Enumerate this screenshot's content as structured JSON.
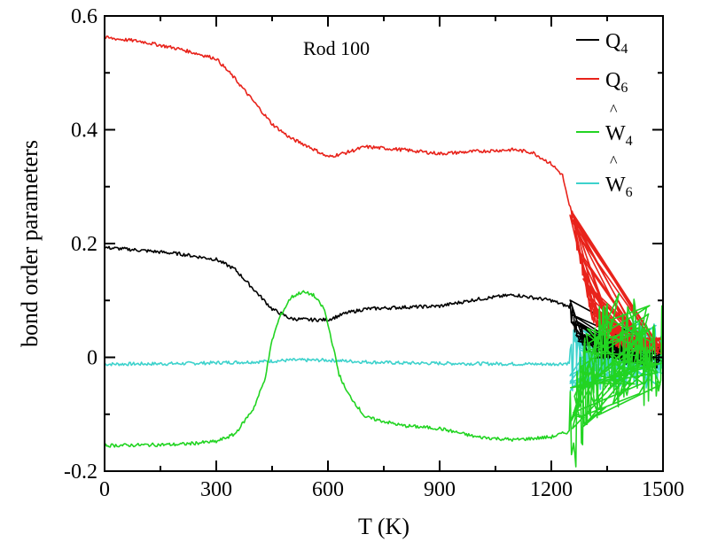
{
  "chart_data": {
    "type": "line",
    "annotation": "Rod 100",
    "xlabel": "T (K)",
    "ylabel": "bond order parameters",
    "xlim": [
      0,
      1500
    ],
    "ylim": [
      -0.2,
      0.6
    ],
    "xticks": [
      0,
      300,
      600,
      900,
      1200,
      1500
    ],
    "xtick_labels": [
      "0",
      "300",
      "600",
      "900",
      "1200",
      "1500"
    ],
    "yticks": [
      -0.2,
      0,
      0.2,
      0.4,
      0.6
    ],
    "ytick_labels": [
      "-0.2",
      "0",
      "0.2",
      "0.4",
      "0.6"
    ],
    "grid": false,
    "legend_position": "top-right",
    "series": [
      {
        "name": "Q4",
        "legend_main": "Q",
        "legend_sub": "4",
        "legend_hat": "",
        "color": "#000000",
        "jitter_start": 1250,
        "jitter_amp": 0.02,
        "points": [
          [
            0,
            0.193
          ],
          [
            100,
            0.188
          ],
          [
            200,
            0.182
          ],
          [
            300,
            0.172
          ],
          [
            350,
            0.155
          ],
          [
            400,
            0.12
          ],
          [
            450,
            0.085
          ],
          [
            500,
            0.068
          ],
          [
            550,
            0.066
          ],
          [
            600,
            0.066
          ],
          [
            650,
            0.078
          ],
          [
            700,
            0.085
          ],
          [
            800,
            0.088
          ],
          [
            900,
            0.09
          ],
          [
            1000,
            0.102
          ],
          [
            1100,
            0.11
          ],
          [
            1200,
            0.1
          ],
          [
            1250,
            0.088
          ],
          [
            1270,
            0.05
          ],
          [
            1300,
            0.02
          ],
          [
            1400,
            0.008
          ],
          [
            1450,
            0.005
          ],
          [
            1500,
            0.0
          ]
        ]
      },
      {
        "name": "Q6",
        "legend_main": "Q",
        "legend_sub": "6",
        "legend_hat": "",
        "color": "#e8231b",
        "jitter_start": 1250,
        "jitter_amp": 0.015,
        "points": [
          [
            0,
            0.562
          ],
          [
            100,
            0.555
          ],
          [
            200,
            0.542
          ],
          [
            300,
            0.525
          ],
          [
            350,
            0.49
          ],
          [
            400,
            0.45
          ],
          [
            450,
            0.41
          ],
          [
            500,
            0.385
          ],
          [
            550,
            0.37
          ],
          [
            600,
            0.352
          ],
          [
            650,
            0.36
          ],
          [
            700,
            0.37
          ],
          [
            800,
            0.365
          ],
          [
            900,
            0.358
          ],
          [
            1000,
            0.362
          ],
          [
            1100,
            0.365
          ],
          [
            1150,
            0.36
          ],
          [
            1200,
            0.34
          ],
          [
            1230,
            0.32
          ],
          [
            1250,
            0.26
          ],
          [
            1270,
            0.2
          ],
          [
            1290,
            0.14
          ],
          [
            1310,
            0.08
          ],
          [
            1350,
            0.04
          ],
          [
            1400,
            0.025
          ],
          [
            1450,
            0.02
          ],
          [
            1500,
            0.02
          ]
        ]
      },
      {
        "name": "Ŵ4",
        "legend_main": "W",
        "legend_sub": "4",
        "legend_hat": "^",
        "color": "#22d422",
        "jitter_start": 1250,
        "jitter_amp": 0.1,
        "points": [
          [
            0,
            -0.155
          ],
          [
            100,
            -0.154
          ],
          [
            200,
            -0.153
          ],
          [
            300,
            -0.148
          ],
          [
            350,
            -0.135
          ],
          [
            400,
            -0.09
          ],
          [
            430,
            -0.04
          ],
          [
            450,
            0.03
          ],
          [
            470,
            0.07
          ],
          [
            500,
            0.105
          ],
          [
            530,
            0.115
          ],
          [
            560,
            0.11
          ],
          [
            590,
            0.085
          ],
          [
            610,
            0.03
          ],
          [
            630,
            -0.03
          ],
          [
            650,
            -0.06
          ],
          [
            700,
            -0.105
          ],
          [
            800,
            -0.12
          ],
          [
            900,
            -0.125
          ],
          [
            1000,
            -0.14
          ],
          [
            1100,
            -0.145
          ],
          [
            1200,
            -0.14
          ],
          [
            1250,
            -0.13
          ],
          [
            1300,
            -0.02
          ],
          [
            1350,
            0.0
          ],
          [
            1400,
            0.02
          ],
          [
            1450,
            0.0
          ],
          [
            1500,
            0.04
          ]
        ]
      },
      {
        "name": "Ŵ6",
        "legend_main": "W",
        "legend_sub": "6",
        "legend_hat": "^",
        "color": "#3dd2cc",
        "jitter_start": 1250,
        "jitter_amp": 0.06,
        "points": [
          [
            0,
            -0.012
          ],
          [
            200,
            -0.011
          ],
          [
            400,
            -0.008
          ],
          [
            500,
            -0.005
          ],
          [
            600,
            -0.005
          ],
          [
            700,
            -0.008
          ],
          [
            800,
            -0.01
          ],
          [
            1000,
            -0.011
          ],
          [
            1200,
            -0.012
          ],
          [
            1250,
            -0.01
          ],
          [
            1300,
            0.0
          ],
          [
            1400,
            0.01
          ],
          [
            1450,
            0.005
          ],
          [
            1500,
            0.0
          ]
        ]
      }
    ]
  }
}
